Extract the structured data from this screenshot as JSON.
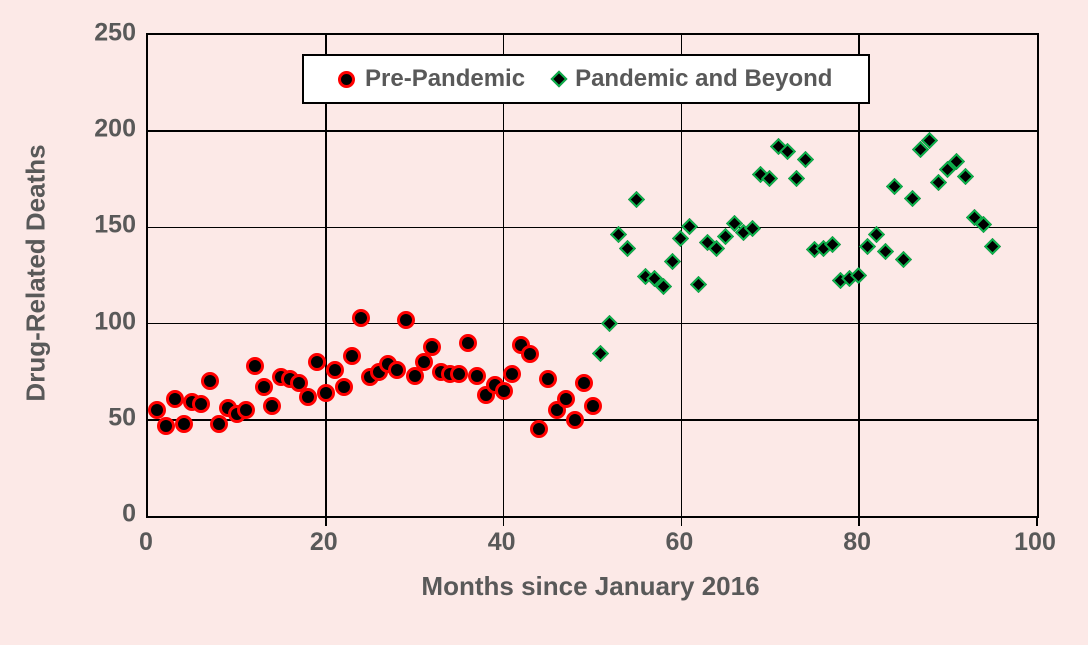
{
  "colors": {
    "background": "#fce9e7",
    "text": "#595959",
    "grid": "#000000",
    "legend_background": "#ffffff",
    "pre_pandemic_ring": "#ff0000",
    "pandemic_ring": "#0cb14b",
    "marker_fill": "#000000"
  },
  "legend": {
    "items": [
      {
        "label": "Pre-Pandemic",
        "marker": "circle"
      },
      {
        "label": "Pandemic and Beyond",
        "marker": "diamond"
      }
    ]
  },
  "chart_data": {
    "type": "scatter",
    "title": "",
    "xlabel": "Months since January 2016",
    "ylabel": "Drug-Related Deaths",
    "xlim": [
      0,
      100
    ],
    "ylim": [
      0,
      250
    ],
    "xticks": [
      0,
      20,
      40,
      60,
      80,
      100
    ],
    "yticks": [
      0,
      50,
      100,
      150,
      200,
      250
    ],
    "grid": true,
    "legend_position": "top-center",
    "series": [
      {
        "name": "Pre-Pandemic",
        "marker": "circle",
        "points": [
          [
            1,
            55
          ],
          [
            2,
            47
          ],
          [
            3,
            61
          ],
          [
            4,
            48
          ],
          [
            5,
            59
          ],
          [
            6,
            58
          ],
          [
            7,
            70
          ],
          [
            8,
            48
          ],
          [
            9,
            56
          ],
          [
            10,
            53
          ],
          [
            11,
            55
          ],
          [
            12,
            78
          ],
          [
            13,
            67
          ],
          [
            14,
            57
          ],
          [
            15,
            72
          ],
          [
            16,
            71
          ],
          [
            17,
            69
          ],
          [
            18,
            62
          ],
          [
            19,
            80
          ],
          [
            20,
            64
          ],
          [
            21,
            76
          ],
          [
            22,
            67
          ],
          [
            23,
            83
          ],
          [
            24,
            103
          ],
          [
            25,
            72
          ],
          [
            26,
            75
          ],
          [
            27,
            79
          ],
          [
            28,
            76
          ],
          [
            29,
            102
          ],
          [
            30,
            73
          ],
          [
            31,
            80
          ],
          [
            32,
            88
          ],
          [
            33,
            75
          ],
          [
            34,
            74
          ],
          [
            35,
            74
          ],
          [
            36,
            90
          ],
          [
            37,
            73
          ],
          [
            38,
            63
          ],
          [
            39,
            68
          ],
          [
            40,
            65
          ],
          [
            41,
            74
          ],
          [
            42,
            89
          ],
          [
            43,
            84
          ],
          [
            44,
            45
          ],
          [
            45,
            71
          ],
          [
            46,
            55
          ],
          [
            47,
            61
          ],
          [
            48,
            50
          ],
          [
            49,
            69
          ],
          [
            50,
            57
          ]
        ]
      },
      {
        "name": "Pandemic and Beyond",
        "marker": "diamond",
        "points": [
          [
            51,
            84
          ],
          [
            52,
            100
          ],
          [
            53,
            146
          ],
          [
            54,
            139
          ],
          [
            55,
            164
          ],
          [
            56,
            124
          ],
          [
            57,
            123
          ],
          [
            58,
            119
          ],
          [
            59,
            132
          ],
          [
            60,
            144
          ],
          [
            61,
            150
          ],
          [
            62,
            120
          ],
          [
            63,
            142
          ],
          [
            64,
            139
          ],
          [
            65,
            145
          ],
          [
            66,
            152
          ],
          [
            67,
            147
          ],
          [
            68,
            149
          ],
          [
            69,
            177
          ],
          [
            70,
            175
          ],
          [
            71,
            192
          ],
          [
            72,
            189
          ],
          [
            73,
            175
          ],
          [
            74,
            185
          ],
          [
            75,
            138
          ],
          [
            76,
            139
          ],
          [
            77,
            141
          ],
          [
            78,
            122
          ],
          [
            79,
            123
          ],
          [
            80,
            125
          ],
          [
            81,
            140
          ],
          [
            82,
            146
          ],
          [
            83,
            137
          ],
          [
            84,
            171
          ],
          [
            85,
            133
          ],
          [
            86,
            165
          ],
          [
            87,
            190
          ],
          [
            88,
            195
          ],
          [
            89,
            173
          ],
          [
            90,
            180
          ],
          [
            91,
            184
          ],
          [
            92,
            176
          ],
          [
            93,
            155
          ],
          [
            94,
            151
          ],
          [
            95,
            140
          ]
        ]
      }
    ]
  }
}
